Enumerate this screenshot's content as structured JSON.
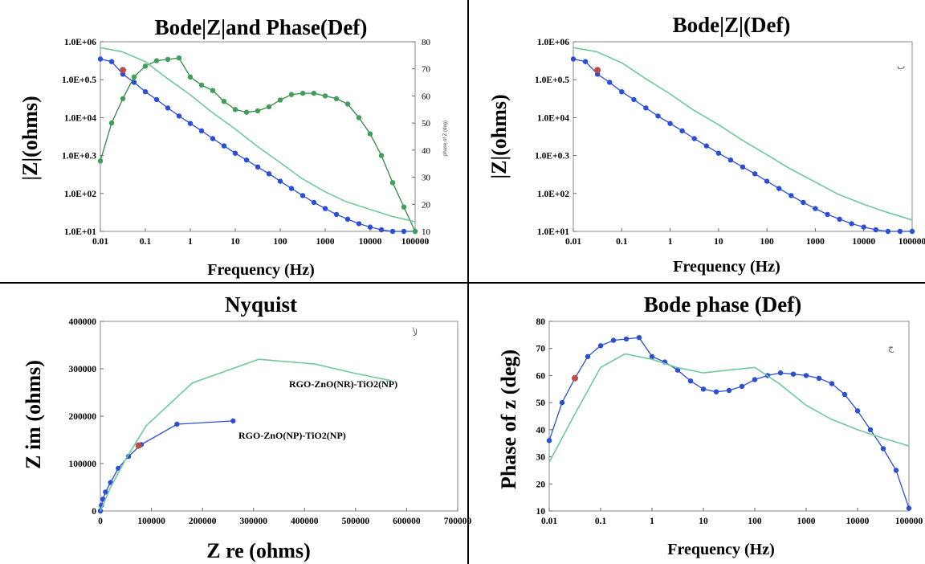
{
  "colors": {
    "blue": "#2a4fd6",
    "green": "#3f9e57",
    "dark_green": "#2f8a3e",
    "red": "#c04a4a",
    "line_green": "#6fc99a"
  },
  "chart_data": [
    {
      "id": "p1",
      "type": "line",
      "title": "Bode|Z|and Phase(Def)",
      "xlabel": "Frequency (Hz)",
      "ylabel": "|Z|(ohms)",
      "y2label": "phase of Z (deg)",
      "xscale": "log",
      "xlim": [
        0.01,
        100000
      ],
      "xticks": [
        "0.01",
        "0.1",
        "1",
        "10",
        "100",
        "1000",
        "10000",
        "100000"
      ],
      "ylim": [
        10,
        1000000
      ],
      "yticks": [
        "1.0E+01",
        "1.0E+02",
        "1.0E+0.3",
        "1.0E+04",
        "1.0E+0.5",
        "1.0E+06"
      ],
      "y2lim": [
        10,
        80
      ],
      "y2ticks": [
        "10",
        "20",
        "30",
        "40",
        "50",
        "60",
        "70",
        "80"
      ],
      "grid": false,
      "series": [
        {
          "axis": "left",
          "style": "markers-blue",
          "x": [
            0.01,
            0.01778,
            0.03162,
            0.05623,
            0.1,
            0.1778,
            0.3162,
            0.5623,
            1,
            1.778,
            3.162,
            5.623,
            10,
            17.78,
            31.62,
            56.23,
            100,
            177.8,
            316.2,
            562.3,
            1000,
            1778,
            3162,
            5623,
            10000,
            17780,
            31620,
            56230,
            100000
          ],
          "y": [
            350000,
            300000,
            140000,
            85000,
            48000,
            30000,
            18000,
            11000,
            7000,
            4500,
            2800,
            1800,
            1150,
            760,
            500,
            330,
            210,
            135,
            88,
            58,
            40,
            28,
            21,
            16,
            13,
            11,
            10,
            10,
            10
          ]
        },
        {
          "axis": "right",
          "style": "markers-green",
          "x": [
            0.01,
            0.01778,
            0.03162,
            0.05623,
            0.1,
            0.1778,
            0.3162,
            0.5623,
            1,
            1.778,
            3.162,
            5.623,
            10,
            17.78,
            31.62,
            56.23,
            100,
            177.8,
            316.2,
            562.3,
            1000,
            1778,
            3162,
            5623,
            10000,
            17780,
            31620,
            56230,
            100000
          ],
          "y": [
            36,
            50,
            59,
            67,
            71,
            73,
            73.5,
            74,
            67,
            64,
            62,
            58,
            55,
            54,
            54.5,
            56,
            58.5,
            60.5,
            61,
            61,
            60,
            59,
            57,
            52,
            46,
            38,
            28,
            19,
            10
          ]
        },
        {
          "axis": "left",
          "style": "line",
          "x": [
            0.01,
            0.03,
            0.1,
            0.3,
            1,
            3,
            10,
            30,
            100,
            300,
            1000,
            3000,
            10000,
            30000,
            100000
          ],
          "y": [
            700000,
            550000,
            300000,
            110000,
            40000,
            14000,
            5000,
            1800,
            650,
            250,
            110,
            60,
            38,
            25,
            18
          ]
        }
      ],
      "highlight": {
        "axis": "left",
        "x": 0.0316,
        "y": 180000
      }
    },
    {
      "id": "p2",
      "type": "line",
      "title": "Bode|Z|(Def)",
      "xlabel": "Frequency (Hz)",
      "ylabel": "|Z|(ohms)",
      "xscale": "log",
      "xlim": [
        0.01,
        100000
      ],
      "xticks": [
        "0.01",
        "0.1",
        "1",
        "10",
        "100",
        "1000",
        "10000",
        "100000"
      ],
      "ylim": [
        10,
        1000000
      ],
      "yticks": [
        "1.0E+01",
        "1.0E+02",
        "1.0E+0.3",
        "1.0E+04",
        "1.0E+0.5",
        "1.0E+06"
      ],
      "grid": false,
      "series": [
        {
          "axis": "left",
          "style": "markers-blue",
          "x": [
            0.01,
            0.01778,
            0.03162,
            0.05623,
            0.1,
            0.1778,
            0.3162,
            0.5623,
            1,
            1.778,
            3.162,
            5.623,
            10,
            17.78,
            31.62,
            56.23,
            100,
            177.8,
            316.2,
            562.3,
            1000,
            1778,
            3162,
            5623,
            10000,
            17780,
            31620,
            56230,
            100000
          ],
          "y": [
            350000,
            300000,
            140000,
            85000,
            48000,
            30000,
            18000,
            11000,
            7000,
            4500,
            2800,
            1800,
            1150,
            760,
            500,
            330,
            210,
            135,
            88,
            58,
            40,
            28,
            21,
            16,
            13,
            11,
            10,
            10,
            10
          ]
        },
        {
          "axis": "left",
          "style": "line",
          "x": [
            0.01,
            0.03,
            0.1,
            0.3,
            1,
            3,
            10,
            30,
            100,
            300,
            1000,
            3000,
            10000,
            30000,
            100000
          ],
          "y": [
            700000,
            550000,
            280000,
            110000,
            42000,
            16000,
            6500,
            2600,
            1050,
            450,
            200,
            95,
            52,
            32,
            20
          ]
        }
      ],
      "highlight": {
        "axis": "left",
        "x": 0.0316,
        "y": 180000
      },
      "corner_mark": "ب"
    },
    {
      "id": "p3",
      "type": "line",
      "title": "Nyquist",
      "xlabel": "Z re (ohms)",
      "ylabel": "Z im (ohms)",
      "xscale": "linear",
      "xlim": [
        0,
        700000
      ],
      "xticks": [
        "0",
        "100000",
        "200000",
        "300000",
        "400000",
        "500000",
        "600000",
        "700000"
      ],
      "ylim": [
        0,
        400000
      ],
      "yticks": [
        "0",
        "100000",
        "200000",
        "300000",
        "400000"
      ],
      "grid": false,
      "series": [
        {
          "axis": "left",
          "style": "markers-blue",
          "name": "RGO-ZnO(NP)-TiO2(NP)",
          "x": [
            0,
            2000,
            5000,
            10000,
            20000,
            35000,
            55000,
            80000,
            150000,
            260000
          ],
          "y": [
            0,
            12000,
            25000,
            40000,
            60000,
            90000,
            115000,
            140000,
            183000,
            190000
          ]
        },
        {
          "axis": "left",
          "style": "line",
          "name": "RGO-ZnO(NR)-TiO2(NP)",
          "x": [
            0,
            20000,
            50000,
            90000,
            180000,
            310000,
            420000,
            500000,
            570000
          ],
          "y": [
            0,
            50000,
            110000,
            180000,
            270000,
            320000,
            310000,
            290000,
            275000
          ]
        }
      ],
      "highlight": {
        "axis": "left",
        "x": 75000,
        "y": 138000
      },
      "annotations": [
        "RGO-ZnO(NR)-TiO2(NP)",
        "RGO-ZnO(NP)-TiO2(NP)"
      ],
      "corner_mark": "ﻷ"
    },
    {
      "id": "p4",
      "type": "line",
      "title": "Bode phase (Def)",
      "xlabel": "Frequency (Hz)",
      "ylabel": "Phase of z (deg)",
      "xscale": "log",
      "xlim": [
        0.01,
        100000
      ],
      "xticks": [
        "0.01",
        "0.1",
        "1",
        "10",
        "100",
        "1000",
        "10000",
        "100000"
      ],
      "ylim": [
        10,
        80
      ],
      "yticks": [
        "10",
        "20",
        "30",
        "40",
        "50",
        "60",
        "70",
        "80"
      ],
      "grid": false,
      "series": [
        {
          "axis": "left",
          "style": "markers-blue",
          "x": [
            0.01,
            0.01778,
            0.03162,
            0.05623,
            0.1,
            0.1778,
            0.3162,
            0.5623,
            1,
            1.778,
            3.162,
            5.623,
            10,
            17.78,
            31.62,
            56.23,
            100,
            177.8,
            316.2,
            562.3,
            1000,
            1778,
            3162,
            5623,
            10000,
            17780,
            31620,
            56230,
            100000
          ],
          "y": [
            36,
            50,
            59,
            67,
            71,
            73,
            73.5,
            74,
            67,
            65,
            62,
            58,
            55,
            54,
            54.5,
            56,
            58.5,
            60,
            61,
            60.5,
            60,
            59,
            57,
            53,
            47,
            40,
            33,
            25,
            11
          ]
        },
        {
          "axis": "left",
          "style": "line",
          "x": [
            0.01,
            0.03,
            0.1,
            0.3,
            1,
            3,
            10,
            30,
            100,
            300,
            1000,
            3000,
            10000,
            30000,
            100000
          ],
          "y": [
            28,
            45,
            63,
            68,
            66,
            63,
            61,
            62,
            63,
            57,
            49,
            44,
            40,
            37,
            34
          ]
        }
      ],
      "highlight": {
        "axis": "left",
        "x": 0.0316,
        "y": 59
      },
      "corner_mark": "ج"
    }
  ]
}
